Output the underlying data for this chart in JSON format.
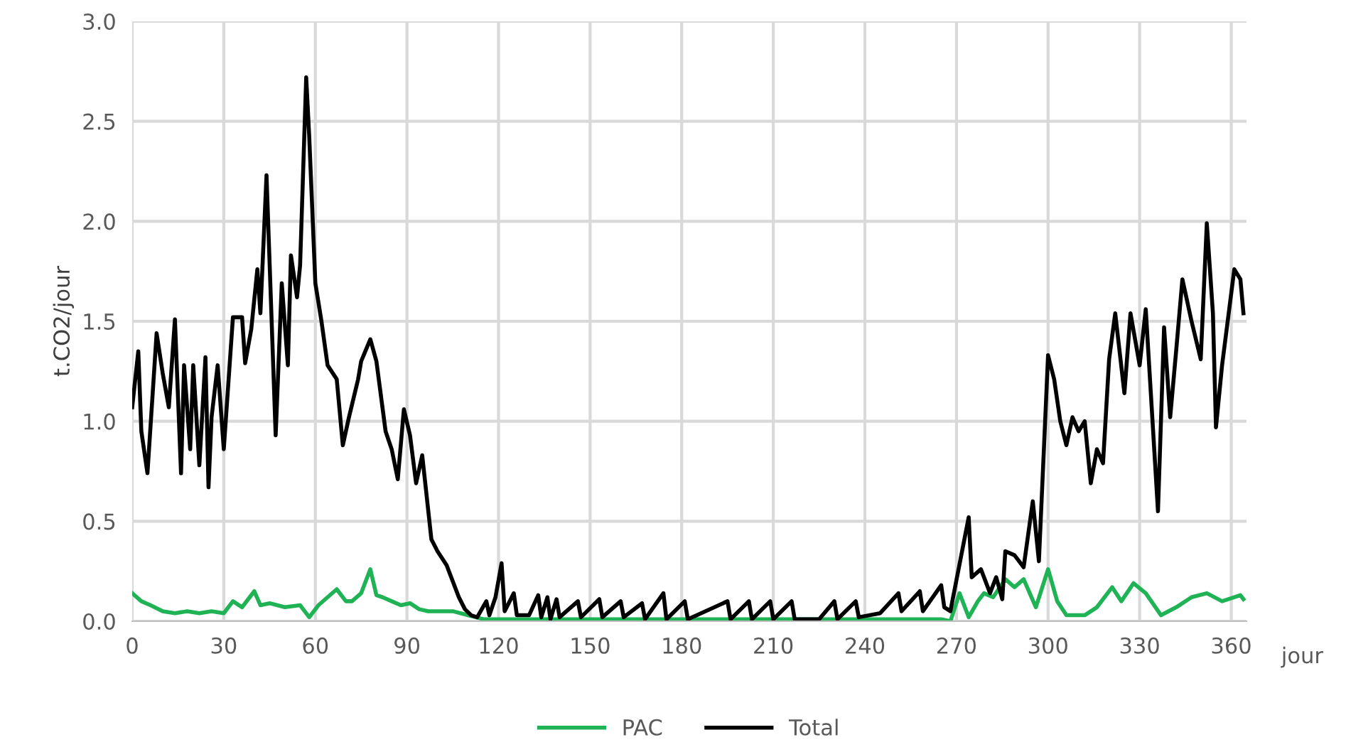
{
  "chart_data": {
    "type": "line",
    "xlabel": "jour",
    "ylabel": "t.CO2/jour",
    "xlim": [
      0,
      365
    ],
    "ylim": [
      0,
      3.0
    ],
    "xticks": [
      0,
      30,
      60,
      90,
      120,
      150,
      180,
      210,
      240,
      270,
      300,
      330,
      360
    ],
    "yticks": [
      {
        "value": 0,
        "label": "0.0"
      },
      {
        "value": 0.5,
        "label": "0.5"
      },
      {
        "value": 1.0,
        "label": "1.0"
      },
      {
        "value": 1.5,
        "label": "1.5"
      },
      {
        "value": 2.0,
        "label": "2.0"
      },
      {
        "value": 2.5,
        "label": "2.5"
      },
      {
        "value": 3.0,
        "label": "3.0"
      }
    ],
    "grid": true,
    "legend": "bottom",
    "marker": "none",
    "line_style": "solid",
    "series": [
      {
        "name": "PAC",
        "color": "#1fb356",
        "x": [
          0,
          3,
          6,
          10,
          14,
          18,
          22,
          26,
          30,
          33,
          36,
          40,
          42,
          45,
          50,
          55,
          58,
          61,
          64,
          67,
          70,
          72,
          75,
          78,
          80,
          82,
          85,
          88,
          91,
          94,
          97,
          100,
          105,
          110,
          115,
          130,
          150,
          170,
          190,
          210,
          230,
          250,
          265,
          268,
          271,
          274,
          277,
          279,
          282,
          286,
          289,
          292,
          296,
          300,
          303,
          306,
          312,
          316,
          321,
          324,
          328,
          332,
          337,
          342,
          347,
          352,
          357,
          363,
          364
        ],
        "values": [
          0.14,
          0.1,
          0.08,
          0.05,
          0.04,
          0.05,
          0.04,
          0.05,
          0.04,
          0.1,
          0.07,
          0.15,
          0.08,
          0.09,
          0.07,
          0.08,
          0.02,
          0.08,
          0.12,
          0.16,
          0.1,
          0.1,
          0.14,
          0.26,
          0.13,
          0.12,
          0.1,
          0.08,
          0.09,
          0.06,
          0.05,
          0.05,
          0.05,
          0.03,
          0.01,
          0.01,
          0.01,
          0.01,
          0.01,
          0.01,
          0.01,
          0.01,
          0.01,
          0.0,
          0.14,
          0.02,
          0.1,
          0.14,
          0.12,
          0.21,
          0.17,
          0.21,
          0.07,
          0.26,
          0.1,
          0.03,
          0.03,
          0.07,
          0.17,
          0.1,
          0.19,
          0.14,
          0.03,
          0.07,
          0.12,
          0.14,
          0.1,
          0.13,
          0.11
        ]
      },
      {
        "name": "Total",
        "color": "#000000",
        "x": [
          0,
          2,
          3,
          5,
          8,
          10,
          12,
          14,
          16,
          17,
          19,
          20,
          22,
          24,
          25,
          26,
          28,
          30,
          33,
          36,
          37,
          39,
          41,
          42,
          44,
          47,
          49,
          51,
          52,
          54,
          55,
          57,
          58,
          60,
          62,
          64,
          67,
          69,
          71,
          74,
          75,
          78,
          80,
          83,
          85,
          87,
          89,
          91,
          93,
          95,
          98,
          100,
          103,
          105,
          107,
          109,
          111,
          113,
          116,
          117,
          119,
          121,
          122,
          125,
          126,
          130,
          133,
          134,
          136,
          137,
          139,
          140,
          146,
          147,
          153,
          154,
          160,
          161,
          167,
          168,
          174,
          175,
          181,
          182,
          195,
          196,
          202,
          203,
          209,
          210,
          216,
          217,
          225,
          230,
          231,
          237,
          238,
          245,
          251,
          252,
          258,
          259,
          265,
          266,
          268,
          274,
          275,
          278,
          281,
          283,
          285,
          286,
          289,
          292,
          295,
          297,
          300,
          302,
          304,
          306,
          308,
          310,
          312,
          314,
          316,
          318,
          320,
          322,
          325,
          327,
          330,
          332,
          336,
          338,
          340,
          342,
          344,
          347,
          350,
          352,
          354,
          355,
          357,
          361,
          363,
          364
        ],
        "values": [
          1.07,
          1.35,
          0.95,
          0.74,
          1.44,
          1.24,
          1.07,
          1.51,
          0.74,
          1.28,
          0.86,
          1.28,
          0.78,
          1.32,
          0.67,
          1.02,
          1.28,
          0.86,
          1.52,
          1.52,
          1.29,
          1.46,
          1.76,
          1.54,
          2.23,
          0.93,
          1.69,
          1.28,
          1.83,
          1.62,
          1.78,
          2.72,
          2.42,
          1.69,
          1.5,
          1.28,
          1.21,
          0.88,
          1.02,
          1.21,
          1.3,
          1.41,
          1.3,
          0.95,
          0.86,
          0.71,
          1.06,
          0.93,
          0.69,
          0.83,
          0.41,
          0.35,
          0.28,
          0.2,
          0.12,
          0.06,
          0.03,
          0.02,
          0.1,
          0.03,
          0.12,
          0.29,
          0.05,
          0.14,
          0.03,
          0.03,
          0.13,
          0.02,
          0.12,
          0.01,
          0.11,
          0.02,
          0.1,
          0.02,
          0.11,
          0.02,
          0.1,
          0.02,
          0.09,
          0.01,
          0.14,
          0.01,
          0.1,
          0.01,
          0.1,
          0.01,
          0.1,
          0.01,
          0.1,
          0.01,
          0.1,
          0.01,
          0.01,
          0.1,
          0.01,
          0.1,
          0.02,
          0.04,
          0.14,
          0.05,
          0.15,
          0.05,
          0.18,
          0.07,
          0.05,
          0.52,
          0.22,
          0.26,
          0.14,
          0.22,
          0.11,
          0.35,
          0.33,
          0.27,
          0.6,
          0.3,
          1.33,
          1.21,
          1.0,
          0.88,
          1.02,
          0.95,
          1.0,
          0.69,
          0.86,
          0.79,
          1.31,
          1.54,
          1.14,
          1.54,
          1.28,
          1.56,
          0.55,
          1.47,
          1.02,
          1.36,
          1.71,
          1.5,
          1.31,
          1.99,
          1.54,
          0.97,
          1.28,
          1.76,
          1.71,
          1.54
        ]
      }
    ]
  }
}
